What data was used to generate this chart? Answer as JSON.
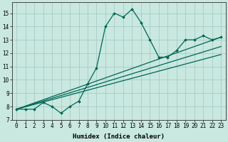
{
  "title": "",
  "xlabel": "Humidex (Indice chaleur)",
  "xlim": [
    -0.5,
    23.5
  ],
  "ylim": [
    7.0,
    15.8
  ],
  "yticks": [
    7,
    8,
    9,
    10,
    11,
    12,
    13,
    14,
    15
  ],
  "xticks": [
    0,
    1,
    2,
    3,
    4,
    5,
    6,
    7,
    8,
    9,
    10,
    11,
    12,
    13,
    14,
    15,
    16,
    17,
    18,
    19,
    20,
    21,
    22,
    23
  ],
  "bg_color": "#c8e8e0",
  "grid_color": "#a8ccc4",
  "line_color": "#006655",
  "line1_x": [
    0,
    1,
    2,
    3,
    4,
    5,
    6,
    7,
    8,
    9,
    10,
    11,
    12,
    13,
    14,
    15,
    16,
    17,
    18,
    19,
    20,
    21,
    22,
    23
  ],
  "line1_y": [
    7.8,
    7.8,
    7.8,
    8.3,
    8.0,
    7.5,
    8.0,
    8.4,
    9.7,
    10.9,
    14.0,
    15.0,
    14.7,
    15.3,
    14.3,
    13.0,
    11.7,
    11.7,
    12.2,
    13.0,
    13.0,
    13.3,
    13.0,
    13.2
  ],
  "line2_x": [
    0,
    23
  ],
  "line2_y": [
    7.8,
    13.2
  ],
  "line3_x": [
    0,
    23
  ],
  "line3_y": [
    7.8,
    12.5
  ],
  "line4_x": [
    0,
    23
  ],
  "line4_y": [
    7.8,
    11.9
  ]
}
